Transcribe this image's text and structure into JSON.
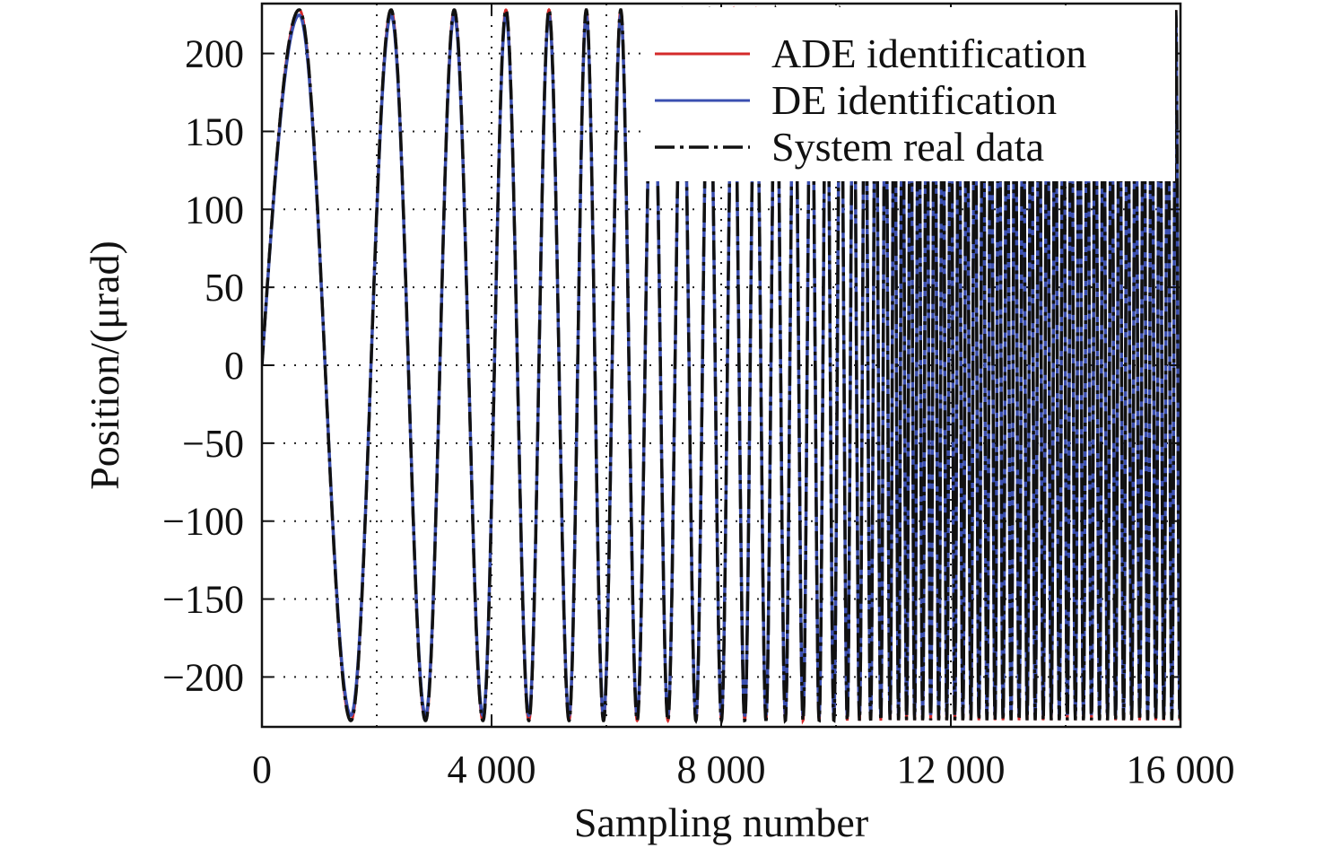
{
  "chart_data": {
    "type": "line",
    "title": "",
    "xlabel": "Sampling number",
    "ylabel": "Position/(μrad)",
    "xlim": [
      0,
      16000
    ],
    "ylim": [
      -232,
      232
    ],
    "x_ticks": [
      {
        "value": 0,
        "label": "0"
      },
      {
        "value": 4000,
        "label": "4 000"
      },
      {
        "value": 8000,
        "label": "8 000"
      },
      {
        "value": 12000,
        "label": "12 000"
      },
      {
        "value": 16000,
        "label": "16 000"
      }
    ],
    "y_ticks": [
      {
        "value": 200,
        "label": "200"
      },
      {
        "value": 150,
        "label": "150"
      },
      {
        "value": 100,
        "label": "100"
      },
      {
        "value": 50,
        "label": "50"
      },
      {
        "value": 0,
        "label": "0"
      },
      {
        "value": -50,
        "label": "−50"
      },
      {
        "value": -100,
        "label": "−100"
      },
      {
        "value": -150,
        "label": "−150"
      },
      {
        "value": -200,
        "label": "−200"
      }
    ],
    "grid": true,
    "legend_position": "top-right",
    "series": [
      {
        "name": "ADE identification",
        "color": "#d42a2a",
        "style": "solid"
      },
      {
        "name": "DE identification",
        "color": "#3a4fb0",
        "style": "solid"
      },
      {
        "name": "System real data",
        "color": "#111111",
        "style": "dashdot"
      }
    ],
    "signal": {
      "shape": "sine chirp",
      "amplitude": 228,
      "start_value": 0,
      "peaks_x": [
        650,
        2250,
        3350,
        4250,
        5000,
        5650,
        6250
      ],
      "troughs_x": [
        1550,
        2850,
        3850,
        4650,
        5350,
        5950
      ],
      "x_end": 16000
    }
  }
}
